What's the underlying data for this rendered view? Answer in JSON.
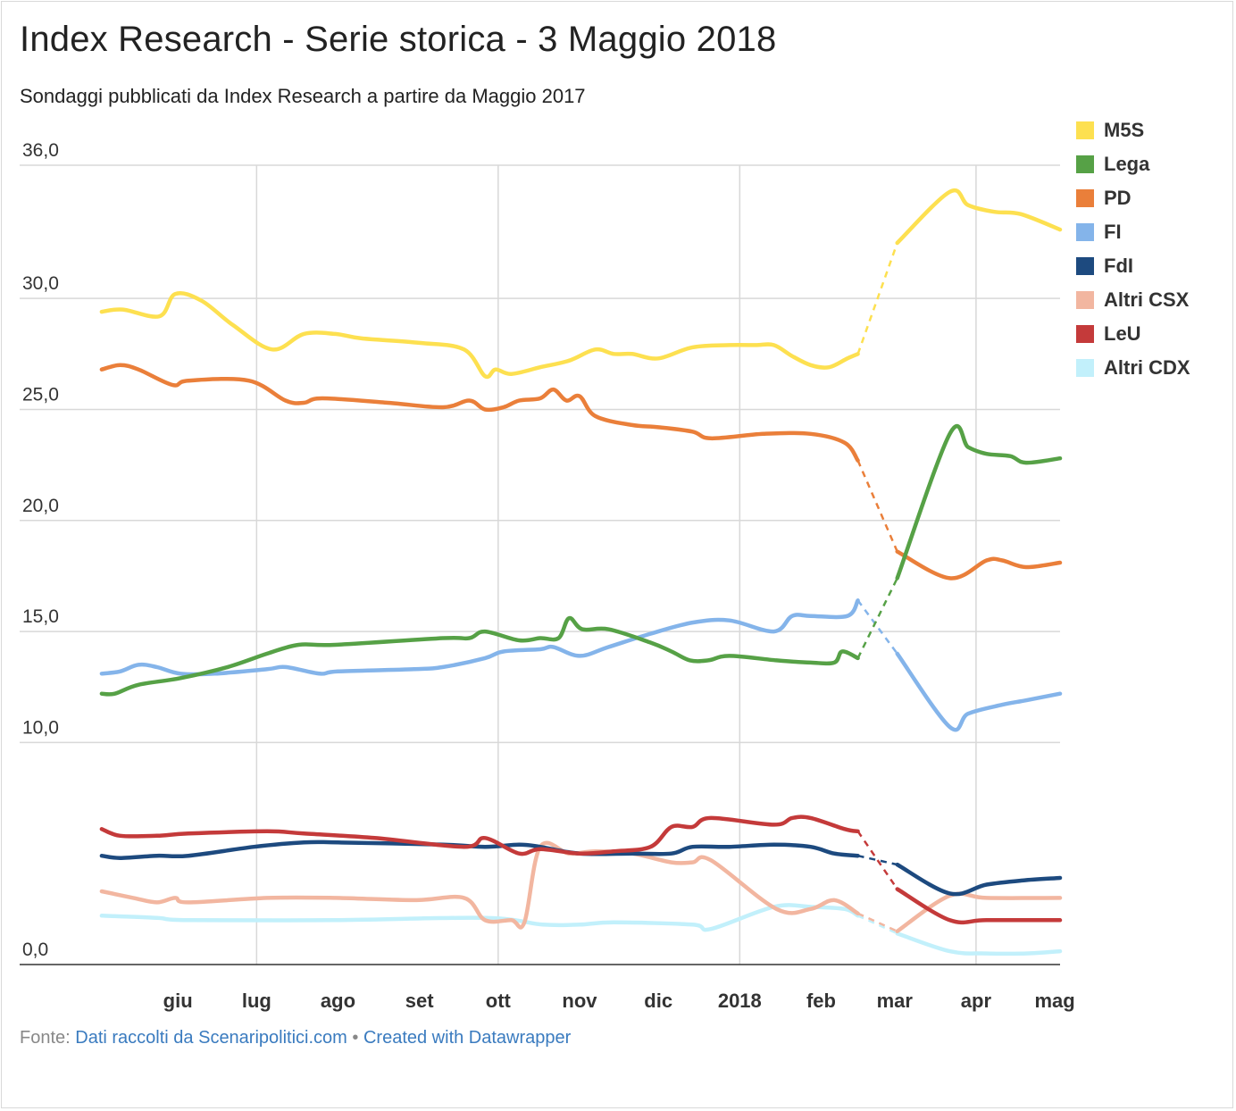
{
  "title": "Index Research - Serie storica - 3 Maggio 2018",
  "subtitle": "Sondaggi pubblicati da Index Research a partire da Maggio 2017",
  "footer": {
    "prefix": "Fonte:",
    "source_link": "Dati raccolti da Scenaripolitici.com",
    "separator": "•",
    "credit_link": "Created with Datawrapper"
  },
  "chart_data": {
    "type": "line",
    "title": "Index Research - Serie storica - 3 Maggio 2018",
    "subtitle": "Sondaggi pubblicati da Index Research a partire da Maggio 2017",
    "xlabel": "",
    "ylabel": "",
    "ylim": [
      0,
      36
    ],
    "yticks": [
      {
        "value": 0,
        "label": "0,0"
      },
      {
        "value": 10,
        "label": "10,0"
      },
      {
        "value": 15,
        "label": "15,0"
      },
      {
        "value": 20,
        "label": "20,0"
      },
      {
        "value": 25,
        "label": "25,0"
      },
      {
        "value": 30,
        "label": "30,0"
      },
      {
        "value": 36,
        "label": "36,0"
      }
    ],
    "xlim": [
      "2017-05-01",
      "2018-05-03"
    ],
    "xticks": [
      {
        "date": "2017-06-01",
        "label": "giu"
      },
      {
        "date": "2017-07-01",
        "label": "lug"
      },
      {
        "date": "2017-08-01",
        "label": "ago"
      },
      {
        "date": "2017-09-01",
        "label": "set"
      },
      {
        "date": "2017-10-01",
        "label": "ott"
      },
      {
        "date": "2017-11-01",
        "label": "nov"
      },
      {
        "date": "2017-12-01",
        "label": "dic"
      },
      {
        "date": "2018-01-01",
        "label": "2018"
      },
      {
        "date": "2018-02-01",
        "label": "feb"
      },
      {
        "date": "2018-03-01",
        "label": "mar"
      },
      {
        "date": "2018-04-01",
        "label": "apr"
      },
      {
        "date": "2018-05-01",
        "label": "mag"
      }
    ],
    "vertical_gridlines": [
      "2017-07-01",
      "2017-10-01",
      "2018-01-01",
      "2018-04-01"
    ],
    "grid": true,
    "legend_position": "right",
    "dashed_gaps": [
      {
        "series": "M5S",
        "from": "2018-02-15",
        "to": "2018-03-02"
      },
      {
        "series": "Lega",
        "from": "2018-02-15",
        "to": "2018-03-02"
      },
      {
        "series": "PD",
        "from": "2018-02-15",
        "to": "2018-03-02"
      },
      {
        "series": "FI",
        "from": "2018-02-15",
        "to": "2018-03-02"
      },
      {
        "series": "FdI",
        "from": "2018-02-15",
        "to": "2018-03-02"
      },
      {
        "series": "Altri CSX",
        "from": "2018-02-15",
        "to": "2018-03-02"
      },
      {
        "series": "LeU",
        "from": "2018-02-15",
        "to": "2018-03-02"
      },
      {
        "series": "Altri CDX",
        "from": "2017-09-28",
        "to": "2017-10-18"
      },
      {
        "series": "Altri CDX",
        "from": "2018-02-15",
        "to": "2018-03-02"
      }
    ],
    "series": [
      {
        "name": "M5S",
        "color": "#fde050",
        "points": [
          [
            "2017-05-03",
            29.4
          ],
          [
            "2017-05-11",
            29.5
          ],
          [
            "2017-05-25",
            29.2
          ],
          [
            "2017-05-31",
            30.2
          ],
          [
            "2017-06-10",
            29.9
          ],
          [
            "2017-06-22",
            28.8
          ],
          [
            "2017-07-07",
            27.7
          ],
          [
            "2017-07-19",
            28.4
          ],
          [
            "2017-07-31",
            28.4
          ],
          [
            "2017-08-10",
            28.2
          ],
          [
            "2017-09-01",
            28.0
          ],
          [
            "2017-09-18",
            27.7
          ],
          [
            "2017-09-26",
            26.5
          ],
          [
            "2017-09-30",
            26.8
          ],
          [
            "2017-10-06",
            26.6
          ],
          [
            "2017-10-17",
            26.9
          ],
          [
            "2017-10-28",
            27.2
          ],
          [
            "2017-11-07",
            27.7
          ],
          [
            "2017-11-14",
            27.5
          ],
          [
            "2017-11-21",
            27.5
          ],
          [
            "2017-12-01",
            27.3
          ],
          [
            "2017-12-14",
            27.8
          ],
          [
            "2017-12-28",
            27.9
          ],
          [
            "2018-01-07",
            27.9
          ],
          [
            "2018-01-14",
            27.9
          ],
          [
            "2018-01-21",
            27.4
          ],
          [
            "2018-01-28",
            27.0
          ],
          [
            "2018-02-04",
            26.9
          ],
          [
            "2018-02-11",
            27.3
          ],
          [
            "2018-02-15",
            27.5
          ],
          [
            "2018-03-02",
            32.5
          ],
          [
            "2018-03-22",
            34.8
          ],
          [
            "2018-03-29",
            34.2
          ],
          [
            "2018-04-08",
            33.9
          ],
          [
            "2018-04-18",
            33.8
          ],
          [
            "2018-05-03",
            33.1
          ]
        ]
      },
      {
        "name": "Lega",
        "color": "#56a146",
        "points": [
          [
            "2017-05-03",
            12.2
          ],
          [
            "2017-05-08",
            12.2
          ],
          [
            "2017-05-17",
            12.6
          ],
          [
            "2017-06-02",
            12.9
          ],
          [
            "2017-06-20",
            13.4
          ],
          [
            "2017-07-05",
            14.0
          ],
          [
            "2017-07-17",
            14.4
          ],
          [
            "2017-07-31",
            14.4
          ],
          [
            "2017-09-10",
            14.7
          ],
          [
            "2017-09-20",
            14.7
          ],
          [
            "2017-09-26",
            15.0
          ],
          [
            "2017-10-09",
            14.6
          ],
          [
            "2017-10-17",
            14.7
          ],
          [
            "2017-10-24",
            14.7
          ],
          [
            "2017-10-28",
            15.6
          ],
          [
            "2017-11-02",
            15.1
          ],
          [
            "2017-11-12",
            15.1
          ],
          [
            "2017-11-28",
            14.5
          ],
          [
            "2017-12-06",
            14.1
          ],
          [
            "2017-12-13",
            13.7
          ],
          [
            "2017-12-20",
            13.7
          ],
          [
            "2017-12-28",
            13.9
          ],
          [
            "2018-01-15",
            13.7
          ],
          [
            "2018-01-28",
            13.6
          ],
          [
            "2018-02-06",
            13.6
          ],
          [
            "2018-02-09",
            14.1
          ],
          [
            "2018-02-15",
            13.8
          ],
          [
            "2018-03-02",
            17.4
          ],
          [
            "2018-03-22",
            23.9
          ],
          [
            "2018-03-29",
            23.3
          ],
          [
            "2018-04-05",
            23.0
          ],
          [
            "2018-04-14",
            22.9
          ],
          [
            "2018-04-20",
            22.6
          ],
          [
            "2018-05-03",
            22.8
          ]
        ]
      },
      {
        "name": "PD",
        "color": "#ea7f3a",
        "points": [
          [
            "2017-05-03",
            26.8
          ],
          [
            "2017-05-10",
            27.0
          ],
          [
            "2017-05-17",
            26.8
          ],
          [
            "2017-05-30",
            26.1
          ],
          [
            "2017-06-05",
            26.3
          ],
          [
            "2017-06-28",
            26.3
          ],
          [
            "2017-07-12",
            25.4
          ],
          [
            "2017-07-19",
            25.3
          ],
          [
            "2017-07-26",
            25.5
          ],
          [
            "2017-08-20",
            25.3
          ],
          [
            "2017-09-10",
            25.1
          ],
          [
            "2017-09-20",
            25.4
          ],
          [
            "2017-09-26",
            25.0
          ],
          [
            "2017-10-03",
            25.1
          ],
          [
            "2017-10-09",
            25.4
          ],
          [
            "2017-10-17",
            25.5
          ],
          [
            "2017-10-22",
            25.9
          ],
          [
            "2017-10-27",
            25.4
          ],
          [
            "2017-11-01",
            25.6
          ],
          [
            "2017-11-07",
            24.7
          ],
          [
            "2017-11-21",
            24.3
          ],
          [
            "2017-12-01",
            24.2
          ],
          [
            "2017-12-14",
            24.0
          ],
          [
            "2017-12-21",
            23.7
          ],
          [
            "2018-01-10",
            23.9
          ],
          [
            "2018-01-28",
            23.9
          ],
          [
            "2018-02-10",
            23.5
          ],
          [
            "2018-02-15",
            22.7
          ],
          [
            "2018-03-02",
            18.6
          ],
          [
            "2018-03-22",
            17.4
          ],
          [
            "2018-04-05",
            18.2
          ],
          [
            "2018-04-11",
            18.2
          ],
          [
            "2018-04-20",
            17.9
          ],
          [
            "2018-05-03",
            18.1
          ]
        ]
      },
      {
        "name": "FI",
        "color": "#84b4ea",
        "points": [
          [
            "2017-05-03",
            13.1
          ],
          [
            "2017-05-10",
            13.2
          ],
          [
            "2017-05-17",
            13.5
          ],
          [
            "2017-05-24",
            13.4
          ],
          [
            "2017-06-02",
            13.1
          ],
          [
            "2017-06-15",
            13.1
          ],
          [
            "2017-07-05",
            13.3
          ],
          [
            "2017-07-12",
            13.4
          ],
          [
            "2017-07-25",
            13.1
          ],
          [
            "2017-08-01",
            13.2
          ],
          [
            "2017-08-30",
            13.3
          ],
          [
            "2017-09-10",
            13.4
          ],
          [
            "2017-09-26",
            13.8
          ],
          [
            "2017-10-03",
            14.1
          ],
          [
            "2017-10-17",
            14.2
          ],
          [
            "2017-10-22",
            14.3
          ],
          [
            "2017-11-01",
            13.9
          ],
          [
            "2017-11-12",
            14.3
          ],
          [
            "2017-11-28",
            14.9
          ],
          [
            "2017-12-14",
            15.4
          ],
          [
            "2017-12-28",
            15.5
          ],
          [
            "2018-01-14",
            15.0
          ],
          [
            "2018-01-21",
            15.7
          ],
          [
            "2018-01-28",
            15.7
          ],
          [
            "2018-02-11",
            15.7
          ],
          [
            "2018-02-15",
            16.4
          ],
          [
            "2018-03-02",
            14.0
          ],
          [
            "2018-03-22",
            10.7
          ],
          [
            "2018-03-29",
            11.3
          ],
          [
            "2018-04-11",
            11.7
          ],
          [
            "2018-04-20",
            11.9
          ],
          [
            "2018-05-03",
            12.2
          ]
        ]
      },
      {
        "name": "FdI",
        "color": "#1d4a7f",
        "points": [
          [
            "2017-05-03",
            4.9
          ],
          [
            "2017-05-10",
            4.8
          ],
          [
            "2017-05-24",
            4.9
          ],
          [
            "2017-06-05",
            4.9
          ],
          [
            "2017-06-30",
            5.3
          ],
          [
            "2017-07-19",
            5.5
          ],
          [
            "2017-08-01",
            5.5
          ],
          [
            "2017-09-10",
            5.4
          ],
          [
            "2017-09-26",
            5.3
          ],
          [
            "2017-10-09",
            5.4
          ],
          [
            "2017-10-17",
            5.3
          ],
          [
            "2017-11-01",
            5.0
          ],
          [
            "2017-11-21",
            5.0
          ],
          [
            "2017-12-06",
            5.0
          ],
          [
            "2017-12-14",
            5.3
          ],
          [
            "2017-12-28",
            5.3
          ],
          [
            "2018-01-14",
            5.4
          ],
          [
            "2018-01-28",
            5.3
          ],
          [
            "2018-02-06",
            5.0
          ],
          [
            "2018-02-15",
            4.9
          ],
          [
            "2018-03-02",
            4.5
          ],
          [
            "2018-03-22",
            3.2
          ],
          [
            "2018-04-05",
            3.6
          ],
          [
            "2018-04-20",
            3.8
          ],
          [
            "2018-05-03",
            3.9
          ]
        ]
      },
      {
        "name": "Altri CSX",
        "color": "#f2b6a0",
        "points": [
          [
            "2017-05-03",
            3.3
          ],
          [
            "2017-05-15",
            3.0
          ],
          [
            "2017-05-24",
            2.8
          ],
          [
            "2017-05-31",
            3.0
          ],
          [
            "2017-06-05",
            2.8
          ],
          [
            "2017-07-05",
            3.0
          ],
          [
            "2017-07-31",
            3.0
          ],
          [
            "2017-08-30",
            2.9
          ],
          [
            "2017-09-18",
            3.0
          ],
          [
            "2017-09-26",
            2.0
          ],
          [
            "2017-10-06",
            2.0
          ],
          [
            "2017-10-11",
            1.9
          ],
          [
            "2017-10-17",
            5.3
          ],
          [
            "2017-10-28",
            5.0
          ],
          [
            "2017-11-07",
            5.1
          ],
          [
            "2017-11-21",
            5.0
          ],
          [
            "2017-12-06",
            4.6
          ],
          [
            "2017-12-14",
            4.6
          ],
          [
            "2017-12-21",
            4.7
          ],
          [
            "2018-01-15",
            2.5
          ],
          [
            "2018-01-28",
            2.5
          ],
          [
            "2018-02-06",
            2.9
          ],
          [
            "2018-02-15",
            2.3
          ],
          [
            "2018-03-02",
            1.5
          ],
          [
            "2018-03-22",
            3.1
          ],
          [
            "2018-04-05",
            3.0
          ],
          [
            "2018-05-03",
            3.0
          ]
        ]
      },
      {
        "name": "LeU",
        "color": "#c43a3a",
        "points": [
          [
            "2017-05-03",
            6.1
          ],
          [
            "2017-05-10",
            5.8
          ],
          [
            "2017-05-24",
            5.8
          ],
          [
            "2017-06-05",
            5.9
          ],
          [
            "2017-07-05",
            6.0
          ],
          [
            "2017-07-19",
            5.9
          ],
          [
            "2017-08-15",
            5.7
          ],
          [
            "2017-09-18",
            5.3
          ],
          [
            "2017-09-26",
            5.7
          ],
          [
            "2017-10-09",
            5.0
          ],
          [
            "2017-10-17",
            5.2
          ],
          [
            "2017-11-01",
            5.0
          ],
          [
            "2017-11-14",
            5.1
          ],
          [
            "2017-11-28",
            5.3
          ],
          [
            "2017-12-06",
            6.2
          ],
          [
            "2017-12-14",
            6.2
          ],
          [
            "2017-12-21",
            6.6
          ],
          [
            "2018-01-14",
            6.3
          ],
          [
            "2018-01-21",
            6.6
          ],
          [
            "2018-01-28",
            6.6
          ],
          [
            "2018-02-10",
            6.1
          ],
          [
            "2018-02-15",
            6.0
          ],
          [
            "2018-03-02",
            3.4
          ],
          [
            "2018-03-22",
            2.0
          ],
          [
            "2018-04-05",
            2.0
          ],
          [
            "2018-05-03",
            2.0
          ]
        ]
      },
      {
        "name": "Altri CDX",
        "color": "#c2f0fb",
        "points": [
          [
            "2017-05-03",
            2.2
          ],
          [
            "2017-05-24",
            2.1
          ],
          [
            "2017-06-05",
            2.0
          ],
          [
            "2017-07-31",
            2.0
          ],
          [
            "2017-09-26",
            2.1
          ],
          [
            "2017-10-18",
            1.8
          ],
          [
            "2017-11-01",
            1.8
          ],
          [
            "2017-11-14",
            1.9
          ],
          [
            "2017-12-14",
            1.8
          ],
          [
            "2017-12-21",
            1.6
          ],
          [
            "2018-01-14",
            2.6
          ],
          [
            "2018-01-28",
            2.6
          ],
          [
            "2018-02-10",
            2.5
          ],
          [
            "2018-02-15",
            2.2
          ],
          [
            "2018-03-02",
            1.4
          ],
          [
            "2018-03-22",
            0.6
          ],
          [
            "2018-04-05",
            0.5
          ],
          [
            "2018-04-20",
            0.5
          ],
          [
            "2018-05-03",
            0.6
          ]
        ]
      }
    ]
  }
}
